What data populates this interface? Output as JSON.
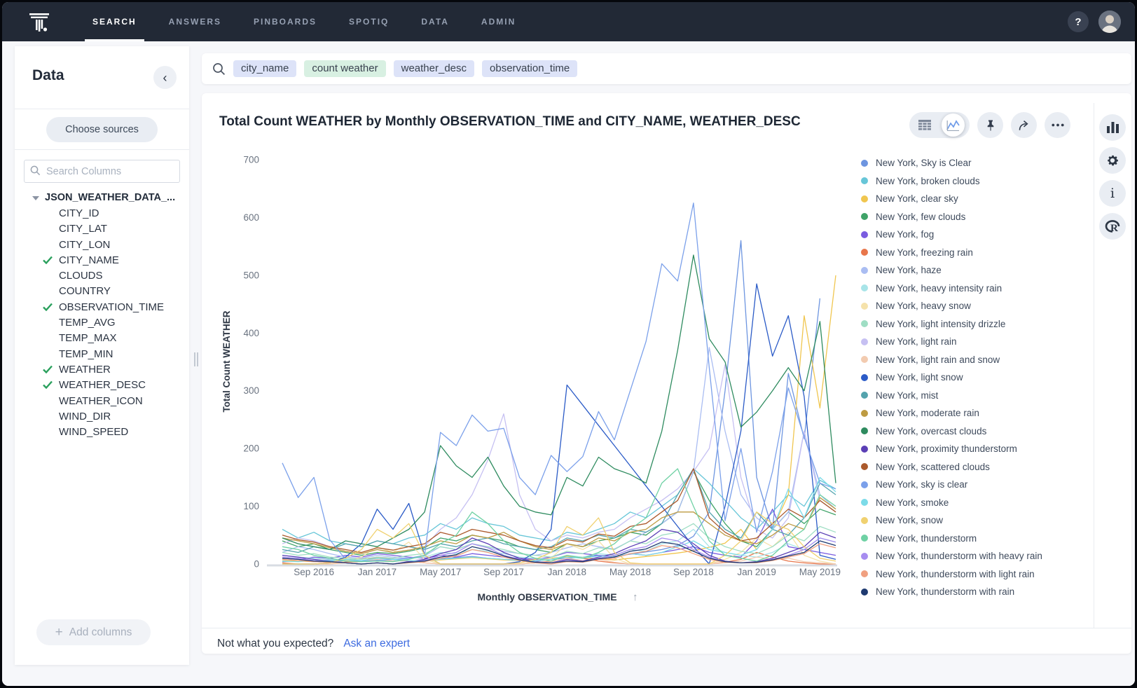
{
  "topnav": {
    "items": [
      {
        "label": "SEARCH",
        "active": true
      },
      {
        "label": "ANSWERS",
        "active": false
      },
      {
        "label": "PINBOARDS",
        "active": false
      },
      {
        "label": "SPOTIQ",
        "active": false
      },
      {
        "label": "DATA",
        "active": false
      },
      {
        "label": "ADMIN",
        "active": false
      }
    ],
    "help_label": "?"
  },
  "search": {
    "tokens": [
      {
        "text": "city_name",
        "kind": "col"
      },
      {
        "text": "count weather",
        "kind": "formula"
      },
      {
        "text": "weather_desc",
        "kind": "col"
      },
      {
        "text": "observation_time",
        "kind": "col"
      }
    ]
  },
  "sidebar": {
    "title": "Data",
    "collapse_icon": "‹",
    "choose_sources_label": "Choose sources",
    "search_placeholder": "Search Columns",
    "table_name": "JSON_WEATHER_DATA_...",
    "columns": [
      {
        "name": "CITY_ID",
        "checked": false
      },
      {
        "name": "CITY_LAT",
        "checked": false
      },
      {
        "name": "CITY_LON",
        "checked": false
      },
      {
        "name": "CITY_NAME",
        "checked": true
      },
      {
        "name": "CLOUDS",
        "checked": false
      },
      {
        "name": "COUNTRY",
        "checked": false
      },
      {
        "name": "OBSERVATION_TIME",
        "checked": true
      },
      {
        "name": "TEMP_AVG",
        "checked": false
      },
      {
        "name": "TEMP_MAX",
        "checked": false
      },
      {
        "name": "TEMP_MIN",
        "checked": false
      },
      {
        "name": "WEATHER",
        "checked": true
      },
      {
        "name": "WEATHER_DESC",
        "checked": true
      },
      {
        "name": "WEATHER_ICON",
        "checked": false
      },
      {
        "name": "WIND_DIR",
        "checked": false
      },
      {
        "name": "WIND_SPEED",
        "checked": false
      }
    ],
    "add_icon": "+",
    "add_columns_label": "Add columns"
  },
  "answer": {
    "title": "Total Count WEATHER by Monthly OBSERVATION_TIME and CITY_NAME, WEATHER_DESC",
    "footer_question": "Not what you expected?",
    "footer_link": "Ask an expert",
    "sort_arrow": "↑"
  },
  "chart_data": {
    "type": "line",
    "title": "Total Count WEATHER by Monthly OBSERVATION_TIME and CITY_NAME, WEATHER_DESC",
    "xlabel": "Monthly OBSERVATION_TIME",
    "ylabel": "Total Count WEATHER",
    "ylim": [
      0,
      700
    ],
    "ytick_step": 100,
    "grid": false,
    "legend_position": "right",
    "x": [
      "Jul 2016",
      "Aug 2016",
      "Sep 2016",
      "Oct 2016",
      "Nov 2016",
      "Dec 2016",
      "Jan 2017",
      "Feb 2017",
      "Mar 2017",
      "Apr 2017",
      "May 2017",
      "Jun 2017",
      "Jul 2017",
      "Aug 2017",
      "Sep 2017",
      "Oct 2017",
      "Nov 2017",
      "Dec 2017",
      "Jan 2018",
      "Feb 2018",
      "Mar 2018",
      "Apr 2018",
      "May 2018",
      "Jun 2018",
      "Jul 2018",
      "Aug 2018",
      "Sep 2018",
      "Oct 2018",
      "Nov 2018",
      "Dec 2018",
      "Jan 2019",
      "Feb 2019",
      "Mar 2019",
      "Apr 2019",
      "May 2019",
      "Jun 2019"
    ],
    "x_tick_labels": [
      "Sep 2016",
      "Jan 2017",
      "May 2017",
      "Sep 2017",
      "Jan 2018",
      "May 2018",
      "Sep 2018",
      "Jan 2019",
      "May 2019"
    ],
    "series": [
      {
        "name": "New York, Sky is Clear",
        "color": "#6d95e0",
        "values": [
          4,
          6,
          5,
          7,
          4,
          5,
          7,
          6,
          5,
          7,
          9,
          11,
          13,
          10,
          8,
          7,
          6,
          8,
          10,
          12,
          15,
          13,
          17,
          21,
          25,
          32,
          48,
          90,
          300,
          560,
          150,
          60,
          330,
          217,
          460,
          null
        ]
      },
      {
        "name": "New York, broken clouds",
        "color": "#67c6d8",
        "values": [
          60,
          45,
          55,
          40,
          35,
          30,
          40,
          35,
          45,
          50,
          70,
          60,
          80,
          70,
          65,
          50,
          45,
          40,
          55,
          50,
          60,
          70,
          90,
          80,
          100,
          120,
          165,
          140,
          110,
          80,
          60,
          90,
          120,
          100,
          145,
          130
        ]
      },
      {
        "name": "New York, clear sky",
        "color": "#f0c64f",
        "values": [
          6,
          5,
          4,
          5,
          7,
          9,
          11,
          8,
          6,
          5,
          7,
          9,
          11,
          9,
          7,
          6,
          8,
          10,
          13,
          11,
          9,
          7,
          10,
          13,
          16,
          19,
          23,
          29,
          36,
          60,
          25,
          60,
          120,
          430,
          270,
          500
        ]
      },
      {
        "name": "New York, few clouds",
        "color": "#3fa368",
        "values": [
          40,
          30,
          35,
          25,
          20,
          15,
          20,
          18,
          22,
          28,
          45,
          40,
          50,
          45,
          40,
          30,
          25,
          20,
          35,
          30,
          40,
          45,
          55,
          50,
          70,
          90,
          160,
          110,
          70,
          40,
          30,
          60,
          90,
          70,
          95,
          85
        ]
      },
      {
        "name": "New York, fog",
        "color": "#7a5ce0",
        "values": [
          10,
          8,
          12,
          10,
          15,
          12,
          18,
          15,
          12,
          10,
          15,
          12,
          18,
          15,
          12,
          10,
          8,
          12,
          20,
          18,
          15,
          12,
          18,
          15,
          20,
          25,
          30,
          20,
          15,
          12,
          40,
          95,
          30,
          25,
          20,
          15
        ]
      },
      {
        "name": "New York, freezing rain",
        "color": "#e8764b",
        "values": [
          2,
          0,
          0,
          0,
          3,
          5,
          12,
          8,
          5,
          2,
          0,
          0,
          0,
          0,
          0,
          0,
          2,
          5,
          15,
          10,
          5,
          2,
          0,
          0,
          0,
          0,
          0,
          0,
          3,
          8,
          20,
          12,
          5,
          2,
          0,
          0
        ]
      },
      {
        "name": "New York, haze",
        "color": "#aabdf2",
        "values": [
          20,
          30,
          25,
          18,
          12,
          10,
          15,
          12,
          10,
          14,
          30,
          25,
          35,
          28,
          22,
          18,
          15,
          20,
          28,
          35,
          30,
          26,
          40,
          55,
          70,
          90,
          160,
          375,
          230,
          120,
          80,
          60,
          90,
          230,
          120,
          95
        ]
      },
      {
        "name": "New York, heavy intensity rain",
        "color": "#a8e4e8",
        "values": [
          15,
          12,
          10,
          8,
          6,
          5,
          8,
          6,
          10,
          12,
          20,
          18,
          25,
          22,
          18,
          12,
          10,
          8,
          15,
          12,
          18,
          15,
          25,
          22,
          35,
          40,
          60,
          30,
          20,
          15,
          12,
          20,
          35,
          25,
          45,
          38
        ]
      },
      {
        "name": "New York, heavy snow",
        "color": "#f5e2ab",
        "values": [
          0,
          0,
          0,
          0,
          5,
          12,
          30,
          20,
          38,
          8,
          0,
          0,
          0,
          0,
          0,
          0,
          4,
          10,
          35,
          25,
          40,
          10,
          0,
          0,
          0,
          0,
          0,
          0,
          8,
          20,
          45,
          30,
          55,
          15,
          5,
          0
        ]
      },
      {
        "name": "New York, light intensity drizzle",
        "color": "#9fdec4",
        "values": [
          20,
          15,
          18,
          12,
          10,
          8,
          12,
          10,
          15,
          18,
          30,
          25,
          35,
          30,
          25,
          18,
          15,
          12,
          22,
          18,
          28,
          25,
          40,
          35,
          50,
          55,
          70,
          45,
          30,
          22,
          18,
          30,
          50,
          40,
          65,
          55
        ]
      },
      {
        "name": "New York, light rain",
        "color": "#c6c0f2",
        "values": [
          35,
          45,
          40,
          30,
          22,
          18,
          25,
          20,
          24,
          30,
          60,
          80,
          120,
          180,
          260,
          120,
          60,
          40,
          50,
          45,
          55,
          60,
          80,
          95,
          110,
          130,
          160,
          200,
          345,
          150,
          60,
          45,
          80,
          230,
          110,
          90
        ]
      },
      {
        "name": "New York, light rain and snow",
        "color": "#f2cbb0",
        "values": [
          0,
          0,
          0,
          0,
          2,
          4,
          8,
          5,
          6,
          2,
          0,
          0,
          0,
          0,
          0,
          0,
          2,
          4,
          10,
          6,
          8,
          3,
          0,
          0,
          0,
          0,
          0,
          0,
          2,
          5,
          12,
          8,
          10,
          4,
          2,
          0
        ]
      },
      {
        "name": "New York, light snow",
        "color": "#2b5bc7",
        "values": [
          0,
          0,
          0,
          2,
          12,
          35,
          95,
          60,
          105,
          15,
          0,
          0,
          0,
          0,
          0,
          4,
          20,
          60,
          310,
          275,
          240,
          205,
          170,
          135,
          100,
          65,
          30,
          0,
          100,
          230,
          485,
          360,
          430,
          290,
          15,
          8
        ]
      },
      {
        "name": "New York, mist",
        "color": "#54a3ad",
        "values": [
          25,
          20,
          30,
          25,
          35,
          30,
          40,
          35,
          30,
          25,
          35,
          30,
          40,
          45,
          35,
          30,
          25,
          30,
          45,
          40,
          50,
          45,
          60,
          55,
          70,
          120,
          165,
          90,
          60,
          45,
          90,
          60,
          50,
          80,
          140,
          120
        ]
      },
      {
        "name": "New York, moderate rain",
        "color": "#bd9b42",
        "values": [
          45,
          40,
          35,
          28,
          22,
          18,
          25,
          20,
          24,
          30,
          40,
          35,
          50,
          45,
          55,
          40,
          30,
          25,
          35,
          30,
          45,
          40,
          55,
          60,
          80,
          90,
          90,
          70,
          50,
          40,
          35,
          50,
          70,
          60,
          115,
          95
        ]
      },
      {
        "name": "New York, overcast clouds",
        "color": "#2e8b5f",
        "values": [
          45,
          35,
          30,
          25,
          40,
          35,
          30,
          45,
          60,
          90,
          205,
          170,
          150,
          185,
          135,
          100,
          90,
          85,
          150,
          135,
          185,
          165,
          155,
          140,
          230,
          370,
          535,
          390,
          350,
          237,
          263,
          300,
          340,
          300,
          420,
          140
        ]
      },
      {
        "name": "New York, proximity thunderstorm",
        "color": "#5b3fb5",
        "values": [
          15,
          12,
          8,
          5,
          2,
          0,
          2,
          0,
          4,
          8,
          18,
          25,
          45,
          35,
          20,
          10,
          4,
          2,
          8,
          5,
          12,
          18,
          30,
          40,
          60,
          55,
          35,
          15,
          5,
          2,
          4,
          10,
          20,
          30,
          55,
          45
        ]
      },
      {
        "name": "New York, scattered clouds",
        "color": "#ab5a2c",
        "values": [
          50,
          42,
          38,
          30,
          25,
          20,
          28,
          24,
          30,
          35,
          55,
          48,
          60,
          55,
          50,
          40,
          32,
          28,
          42,
          38,
          52,
          48,
          65,
          70,
          90,
          110,
          165,
          80,
          55,
          40,
          45,
          70,
          95,
          80,
          110,
          90
        ]
      },
      {
        "name": "New York, sky is clear",
        "color": "#7ba0ea",
        "values": [
          175,
          115,
          150,
          42,
          8,
          5,
          6,
          8,
          10,
          15,
          228,
          205,
          258,
          230,
          235,
          150,
          120,
          188,
          160,
          186,
          264,
          215,
          300,
          385,
          520,
          490,
          625,
          340,
          75,
          200,
          55,
          160,
          305,
          220,
          140,
          130
        ]
      },
      {
        "name": "New York, smoke",
        "color": "#7cdbe8",
        "values": [
          5,
          4,
          6,
          5,
          8,
          6,
          10,
          8,
          6,
          5,
          8,
          10,
          12,
          10,
          8,
          6,
          5,
          8,
          12,
          10,
          14,
          12,
          18,
          15,
          20,
          30,
          40,
          25,
          20,
          15,
          25,
          60,
          130,
          80,
          150,
          125
        ]
      },
      {
        "name": "New York, snow",
        "color": "#f0d170",
        "values": [
          0,
          0,
          0,
          2,
          10,
          25,
          60,
          45,
          70,
          15,
          0,
          0,
          0,
          0,
          0,
          2,
          8,
          20,
          65,
          50,
          80,
          20,
          2,
          0,
          0,
          0,
          0,
          0,
          15,
          40,
          90,
          70,
          60,
          30,
          10,
          5
        ]
      },
      {
        "name": "New York, thunderstorm",
        "color": "#6fd1a4",
        "values": [
          30,
          25,
          15,
          10,
          5,
          4,
          5,
          4,
          8,
          15,
          35,
          50,
          90,
          70,
          40,
          20,
          10,
          5,
          15,
          10,
          20,
          35,
          60,
          80,
          140,
          165,
          100,
          40,
          15,
          10,
          5,
          15,
          40,
          60,
          120,
          100
        ]
      },
      {
        "name": "New York, thunderstorm with heavy rain",
        "color": "#a78df0",
        "values": [
          12,
          10,
          6,
          4,
          2,
          0,
          2,
          0,
          3,
          6,
          15,
          20,
          35,
          28,
          15,
          8,
          3,
          2,
          6,
          4,
          10,
          15,
          25,
          30,
          45,
          40,
          25,
          12,
          4,
          2,
          3,
          8,
          15,
          25,
          45,
          38
        ]
      },
      {
        "name": "New York, thunderstorm with light rain",
        "color": "#f0a080",
        "values": [
          8,
          6,
          4,
          3,
          2,
          0,
          2,
          0,
          2,
          4,
          10,
          14,
          25,
          20,
          12,
          6,
          2,
          0,
          4,
          3,
          8,
          10,
          18,
          22,
          32,
          28,
          18,
          8,
          3,
          2,
          2,
          6,
          12,
          18,
          35,
          28
        ]
      },
      {
        "name": "New York, thunderstorm with rain",
        "color": "#1e3a70",
        "values": [
          10,
          8,
          5,
          4,
          2,
          0,
          2,
          0,
          3,
          5,
          12,
          16,
          30,
          24,
          14,
          7,
          3,
          2,
          5,
          4,
          9,
          12,
          22,
          26,
          38,
          34,
          22,
          10,
          4,
          2,
          3,
          7,
          14,
          20,
          40,
          32
        ]
      }
    ]
  }
}
